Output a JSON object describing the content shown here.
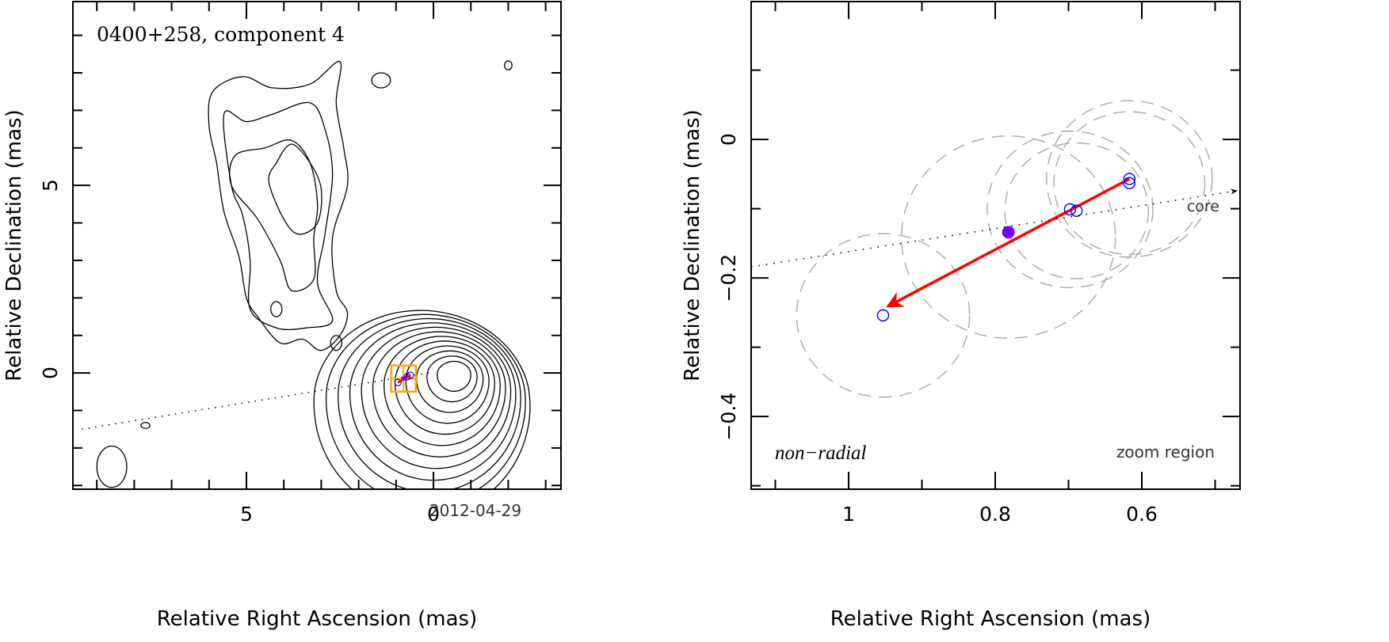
{
  "chart_data": [
    {
      "type": "contour",
      "panel": "left",
      "title": "0400+258, component 4",
      "date_label": "2012-04-29",
      "xlabel": "Relative Right Ascension (mas)",
      "ylabel": "Relative Declination (mas)",
      "xlim": [
        9.64,
        -3.41
      ],
      "ylim": [
        -3.1,
        9.9
      ],
      "xticks": [
        {
          "value": 5,
          "label": "5"
        },
        {
          "value": 0,
          "label": "0"
        }
      ],
      "yticks": [
        {
          "value": 5,
          "label": "5"
        },
        {
          "value": 0,
          "label": "0"
        }
      ],
      "x_minor_step": 1,
      "y_minor_step": 1,
      "core_contours": {
        "center": [
          -0.55,
          -0.05
        ],
        "levels": 12,
        "inner_radius_mas": [
          0.45,
          0.4
        ],
        "step_mas": 0.22
      },
      "jet_contours": [
        {
          "name": "outer",
          "points": [
            [
              5.9,
              7.5
            ],
            [
              6.0,
              6.6
            ],
            [
              5.8,
              5.6
            ],
            [
              5.6,
              4.3
            ],
            [
              5.2,
              3.1
            ],
            [
              5.0,
              2.0
            ],
            [
              4.7,
              1.5
            ],
            [
              4.1,
              0.8
            ],
            [
              3.5,
              0.9
            ],
            [
              3.0,
              0.6
            ],
            [
              2.5,
              1.0
            ],
            [
              2.3,
              1.6
            ],
            [
              2.6,
              2.2
            ],
            [
              2.7,
              3.6
            ],
            [
              2.3,
              5.0
            ],
            [
              2.4,
              6.0
            ],
            [
              2.6,
              7.2
            ],
            [
              2.5,
              8.3
            ],
            [
              3.3,
              7.7
            ],
            [
              4.3,
              7.6
            ],
            [
              5.1,
              7.9
            ]
          ]
        },
        {
          "name": "second",
          "points": [
            [
              5.6,
              6.9
            ],
            [
              5.4,
              5.0
            ],
            [
              5.1,
              4.2
            ],
            [
              4.9,
              3.0
            ],
            [
              4.9,
              1.7
            ],
            [
              4.2,
              1.2
            ],
            [
              3.4,
              1.2
            ],
            [
              2.7,
              1.4
            ],
            [
              3.1,
              2.4
            ],
            [
              2.9,
              3.7
            ],
            [
              2.7,
              5.3
            ],
            [
              2.9,
              6.5
            ],
            [
              3.3,
              7.2
            ],
            [
              4.3,
              6.9
            ],
            [
              5.0,
              6.7
            ]
          ]
        },
        {
          "name": "third",
          "points": [
            [
              5.4,
              5.0
            ],
            [
              4.7,
              4.1
            ],
            [
              4.1,
              3.0
            ],
            [
              3.8,
              2.2
            ],
            [
              3.2,
              2.5
            ],
            [
              3.2,
              3.6
            ],
            [
              3.1,
              4.5
            ],
            [
              3.3,
              5.6
            ],
            [
              3.8,
              6.2
            ],
            [
              4.5,
              6.0
            ],
            [
              5.3,
              5.8
            ]
          ]
        },
        {
          "name": "inner",
          "points": [
            [
              4.4,
              5.1
            ],
            [
              4.0,
              4.1
            ],
            [
              3.6,
              3.7
            ],
            [
              3.1,
              4.0
            ],
            [
              3.0,
              4.9
            ],
            [
              3.3,
              5.6
            ],
            [
              3.8,
              6.1
            ],
            [
              4.2,
              5.6
            ]
          ]
        }
      ],
      "small_features": [
        {
          "center": [
            1.4,
            7.8
          ],
          "r": [
            0.25,
            0.2
          ]
        },
        {
          "center": [
            -2.0,
            8.2
          ],
          "r": [
            0.1,
            0.12
          ]
        },
        {
          "center": [
            4.2,
            1.7
          ],
          "r": [
            0.15,
            0.2
          ]
        },
        {
          "center": [
            2.6,
            0.8
          ],
          "r": [
            0.15,
            0.2
          ]
        },
        {
          "center": [
            8.6,
            -2.5
          ],
          "r": [
            0.4,
            0.55
          ]
        },
        {
          "center": [
            7.7,
            -1.4
          ],
          "r": [
            0.12,
            0.08
          ]
        }
      ],
      "direction_line": {
        "from": [
          9.4,
          -1.5
        ],
        "to": [
          0.0,
          0.02
        ],
        "style": "dotted"
      },
      "zoom_box": {
        "ra": [
          1.13,
          0.47
        ],
        "dec": [
          -0.5,
          0.2
        ],
        "color": "#FFA500"
      },
      "component_positions": [
        {
          "ra": 0.95,
          "dec": -0.255
        },
        {
          "ra": 0.7,
          "dec": -0.1
        },
        {
          "ra": 0.615,
          "dec": -0.06
        }
      ]
    },
    {
      "type": "scatter",
      "panel": "right",
      "xlabel": "Relative Right Ascension (mas)",
      "ylabel": "Relative Declination (mas)",
      "xlim": [
        1.133,
        0.466
      ],
      "ylim": [
        -0.505,
        0.199
      ],
      "xticks": [
        {
          "value": 1,
          "label": "1"
        },
        {
          "value": 0.8,
          "label": "0.8"
        },
        {
          "value": 0.6,
          "label": "0.6"
        }
      ],
      "yticks": [
        {
          "value": 0,
          "label": "0"
        },
        {
          "value": -0.2,
          "label": "−0.2"
        },
        {
          "value": -0.4,
          "label": "−0.4"
        }
      ],
      "x_minor_step": 0.1,
      "y_minor_step": 0.1,
      "annotations": {
        "motion_type": "non−radial",
        "zoom_region_label": "zoom region",
        "core_label": "core"
      },
      "component_positions": [
        {
          "ra": 0.953,
          "dec": -0.254
        },
        {
          "ra": 0.698,
          "dec": -0.101
        },
        {
          "ra": 0.689,
          "dec": -0.103
        },
        {
          "ra": 0.617,
          "dec": -0.057
        },
        {
          "ra": 0.617,
          "dec": -0.063
        }
      ],
      "component_sizes_mas": [
        {
          "ra": 0.953,
          "dec": -0.254,
          "r": 0.118
        },
        {
          "ra": 0.782,
          "dec": -0.141,
          "r": 0.146
        },
        {
          "ra": 0.698,
          "dec": -0.101,
          "r": 0.113
        },
        {
          "ra": 0.689,
          "dec": -0.103,
          "r": 0.098
        },
        {
          "ra": 0.617,
          "dec": -0.057,
          "r": 0.113
        },
        {
          "ra": 0.617,
          "dec": -0.063,
          "r": 0.103
        }
      ],
      "reference_position": {
        "ra": 0.782,
        "dec": -0.134,
        "color": "#7700FF"
      },
      "velocity_vector": {
        "from": [
          0.617,
          -0.057
        ],
        "to": [
          0.945,
          -0.24
        ],
        "color": "#FF0000"
      },
      "core_direction_line": {
        "from": [
          1.133,
          -0.184
        ],
        "to": [
          0.47,
          -0.074
        ],
        "style": "dotted"
      },
      "marker_color": "#0000FF",
      "circle_color": "#AAAAAA"
    }
  ]
}
